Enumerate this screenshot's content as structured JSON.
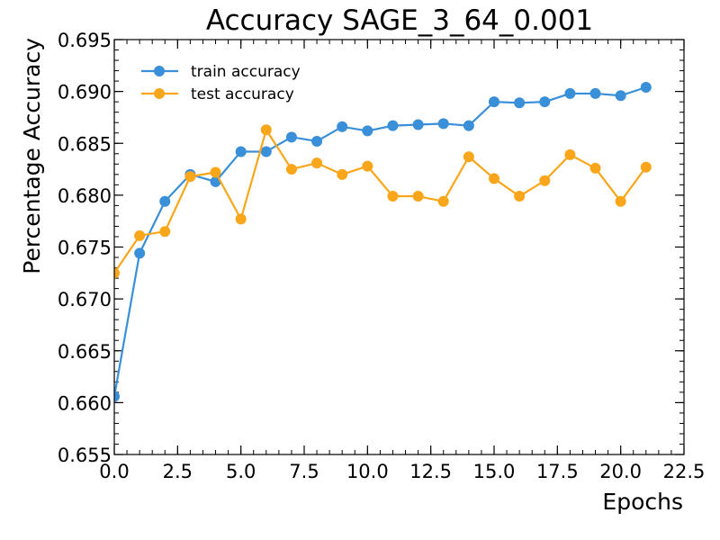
{
  "chart_data": {
    "type": "line",
    "title": "Accuracy SAGE_3_64_0.001",
    "xlabel": "Epochs",
    "ylabel": "Percentage Accuracy",
    "xlim": [
      0,
      22.5
    ],
    "ylim": [
      0.655,
      0.695
    ],
    "xticks": [
      0,
      2.5,
      5,
      7.5,
      10,
      12.5,
      15,
      17.5,
      20,
      22.5
    ],
    "xtick_labels": [
      "0.0",
      "2.5",
      "5.0",
      "7.5",
      "10.0",
      "12.5",
      "15.0",
      "17.5",
      "20.0",
      "22.5"
    ],
    "yticks": [
      0.655,
      0.66,
      0.665,
      0.67,
      0.675,
      0.68,
      0.685,
      0.69,
      0.695
    ],
    "ytick_labels": [
      "0.655",
      "0.660",
      "0.665",
      "0.670",
      "0.675",
      "0.680",
      "0.685",
      "0.690",
      "0.695"
    ],
    "grid": false,
    "legend_position": "top-left",
    "x": [
      0,
      1,
      2,
      3,
      4,
      5,
      6,
      7,
      8,
      9,
      10,
      11,
      12,
      13,
      14,
      15,
      16,
      17,
      18,
      19,
      20,
      21
    ],
    "series": [
      {
        "name": "train accuracy",
        "color": "#3a8fd9",
        "values": [
          0.6606,
          0.6744,
          0.6794,
          0.682,
          0.6813,
          0.6842,
          0.6842,
          0.6856,
          0.6852,
          0.6866,
          0.6862,
          0.6867,
          0.6868,
          0.6869,
          0.6867,
          0.689,
          0.6889,
          0.689,
          0.6898,
          0.6898,
          0.6896,
          0.6904
        ]
      },
      {
        "name": "test accuracy",
        "color": "#faa61a",
        "values": [
          0.6725,
          0.6761,
          0.6765,
          0.6818,
          0.6822,
          0.6777,
          0.6863,
          0.6825,
          0.6831,
          0.682,
          0.6828,
          0.6799,
          0.6799,
          0.6794,
          0.6837,
          0.6816,
          0.6799,
          0.6814,
          0.6839,
          0.6826,
          0.6794,
          0.6827
        ]
      }
    ]
  }
}
